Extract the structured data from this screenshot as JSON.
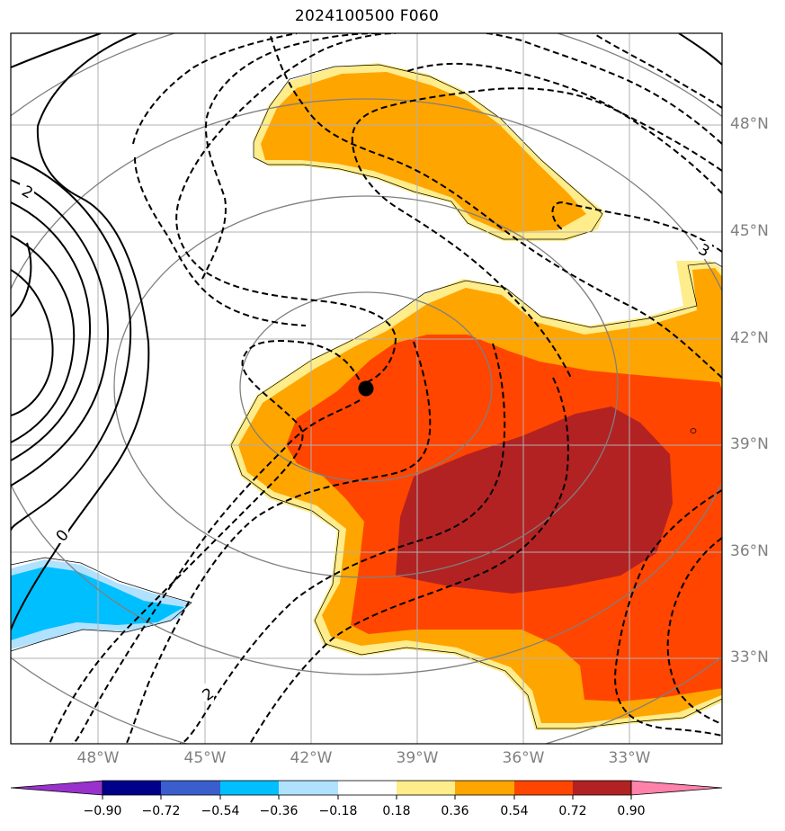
{
  "title": "2024100500 F060",
  "latitude_labels": [
    "48°N",
    "45°N",
    "42°N",
    "39°N",
    "36°N",
    "33°N"
  ],
  "longitude_labels": [
    "48°W",
    "45°W",
    "42°W",
    "39°W",
    "36°W",
    "33°W"
  ],
  "contour_labels": [
    "2",
    "0",
    "2",
    "3"
  ],
  "colorbar": {
    "ticks": [
      "−0.90",
      "−0.72",
      "−0.54",
      "−0.36",
      "−0.18",
      "0.18",
      "0.36",
      "0.54",
      "0.72",
      "0.90"
    ],
    "colors": [
      "#9932cc",
      "#00008b",
      "#3a5fcd",
      "#00bfff",
      "#b0e2ff",
      "#ffffff",
      "#ffec8b",
      "#ffa500",
      "#ff4500",
      "#b22222",
      "#ff82ab"
    ]
  },
  "fill_colors": {
    "light_yellow": "#ffec8b",
    "orange": "#ffa500",
    "orange_red": "#ff4500",
    "firebrick": "#b22222",
    "light_blue": "#b0e2ff",
    "deep_sky_blue": "#00bfff"
  },
  "marker": "storm-center-dot"
}
